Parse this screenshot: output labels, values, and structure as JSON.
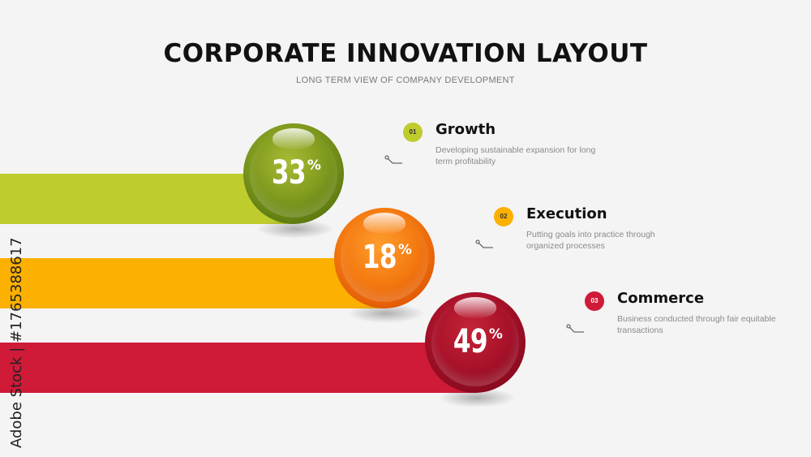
{
  "header": {
    "title": "CORPORATE INNOVATION LAYOUT",
    "subtitle": "LONG TERM VIEW OF COMPANY DEVELOPMENT"
  },
  "items": [
    {
      "number": "01",
      "title": "Growth",
      "description": "Developing sustainable expansion for long term profitability",
      "percent": "33",
      "percent_value": 33,
      "color": "#bfcc2e"
    },
    {
      "number": "02",
      "title": "Execution",
      "description": "Putting goals into practice through organized processes",
      "percent": "18",
      "percent_value": 18,
      "color": "#fcb000"
    },
    {
      "number": "03",
      "title": "Commerce",
      "description": "Business conducted through fair equitable transactions",
      "percent": "49",
      "percent_value": 49,
      "color": "#cf1a38"
    }
  ],
  "percent_sign": "%",
  "watermark": "Adobe Stock | #1765388617"
}
